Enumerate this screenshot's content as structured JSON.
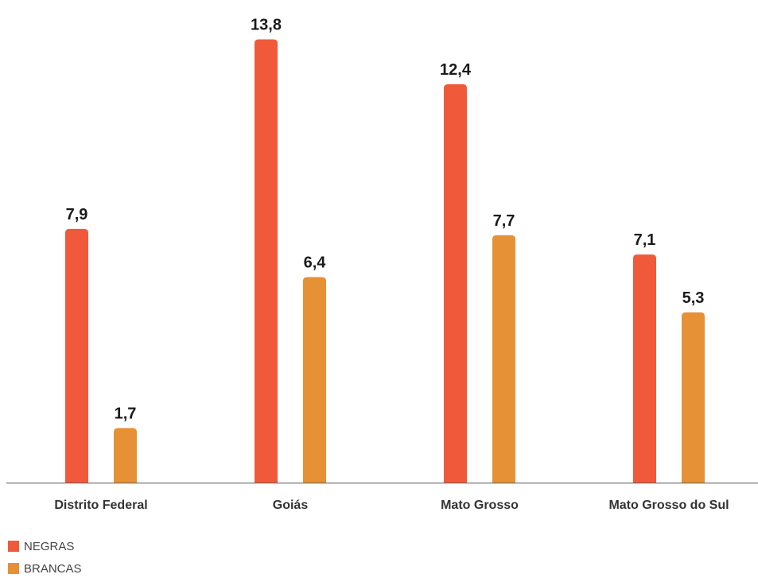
{
  "chart_data": {
    "type": "bar",
    "categories": [
      "Distrito Federal",
      "Goiás",
      "Mato Grosso",
      "Mato Grosso do Sul"
    ],
    "series": [
      {
        "name": "NEGRAS",
        "values": [
          7.9,
          13.8,
          12.4,
          7.1
        ],
        "labels": [
          "7,9",
          "13,8",
          "12,4",
          "7,1"
        ],
        "color": "#f05a3a"
      },
      {
        "name": "BRANCAS",
        "values": [
          1.7,
          6.4,
          7.7,
          5.3
        ],
        "labels": [
          "1,7",
          "6,4",
          "7,7",
          "5,3"
        ],
        "color": "#e69135"
      }
    ],
    "ylim": [
      0,
      15
    ],
    "grid": false,
    "legend_position": "bottom-left",
    "baseline_color": "#555555"
  }
}
